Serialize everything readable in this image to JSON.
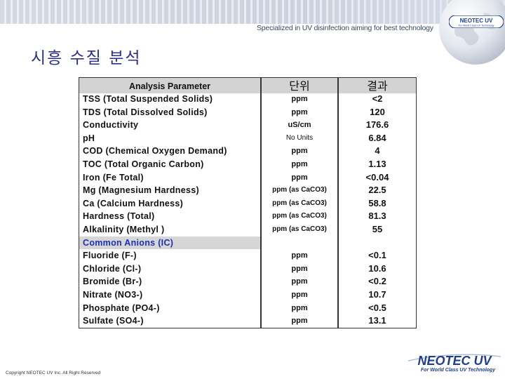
{
  "header": {
    "tagline": "Specialized in UV disinfection aiming for best technology",
    "logo_text": "NEOTEC UV",
    "logo_sub": "For World Class UV Technology"
  },
  "slide": {
    "title": "시흥 수질 분석"
  },
  "table": {
    "headers": {
      "parameter": "Analysis Parameter",
      "unit": "단위",
      "result": "결과"
    },
    "rows": [
      {
        "parameter": "TSS (Total Suspended Solids)",
        "unit": "ppm",
        "result": "<2"
      },
      {
        "parameter": "TDS (Total Dissolved Solids)",
        "unit": "ppm",
        "result": "120"
      },
      {
        "parameter": "Conductivity",
        "unit": "uS/cm",
        "result": "176.6"
      },
      {
        "parameter": "pH",
        "unit": "No Units",
        "result": "6.84"
      },
      {
        "parameter": "COD (Chemical Oxygen Demand)",
        "unit": "ppm",
        "result": "4"
      },
      {
        "parameter": "TOC (Total Organic Carbon)",
        "unit": "ppm",
        "result": "1.13"
      },
      {
        "parameter": "Iron (Fe Total)",
        "unit": "ppm",
        "result": "<0.04"
      },
      {
        "parameter": "Mg (Magnesium Hardness)",
        "unit": "ppm (as CaCO3)",
        "result": "22.5"
      },
      {
        "parameter": "Ca (Calcium Hardness)",
        "unit": "ppm (as CaCO3)",
        "result": "58.8"
      },
      {
        "parameter": "Hardness (Total)",
        "unit": "ppm (as CaCO3)",
        "result": "81.3"
      },
      {
        "parameter": "Alkalinity (Methyl )",
        "unit": "ppm (as CaCO3)",
        "result": "55"
      },
      {
        "parameter": "Common Anions (IC)",
        "unit": "",
        "result": ""
      },
      {
        "parameter": "Fluoride (F-)",
        "unit": "ppm",
        "result": "<0.1"
      },
      {
        "parameter": "Chloride (Cl-)",
        "unit": "ppm",
        "result": "10.6"
      },
      {
        "parameter": "Bromide (Br-)",
        "unit": "ppm",
        "result": "<0.2"
      },
      {
        "parameter": "Nitrate (NO3-)",
        "unit": "ppm",
        "result": "10.7"
      },
      {
        "parameter": "Phosphate (PO4-)",
        "unit": "ppm",
        "result": "<0.5"
      },
      {
        "parameter": "Sulfate (SO4-)",
        "unit": "ppm",
        "result": "13.1"
      }
    ]
  },
  "footer": {
    "copyright": "Copyright NEOTEC UV Inc. All Right Reserved",
    "logo_text": "NEOTEC UV",
    "logo_sub": "For World Class UV Technology"
  },
  "colors": {
    "title": "#2b2f86",
    "section_text": "#1b2fb8",
    "logo_blue": "#1f3f8a"
  }
}
